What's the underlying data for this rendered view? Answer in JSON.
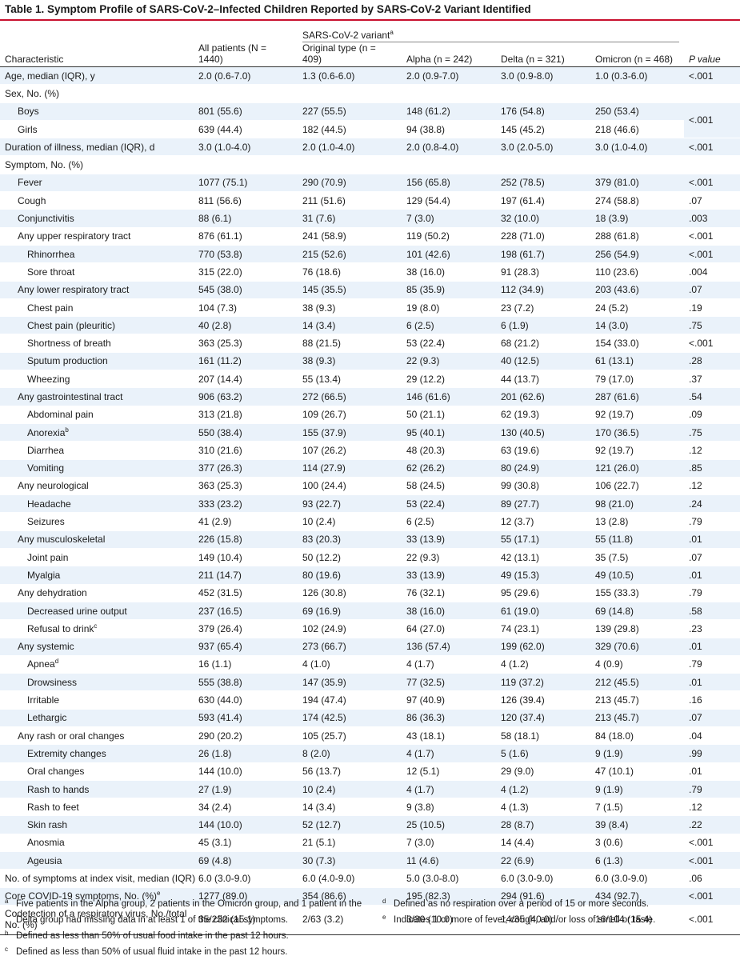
{
  "title": "Table 1. Symptom Profile of SARS-CoV-2–Infected Children Reported by SARS-CoV-2 Variant Identified",
  "header": {
    "characteristic": "Characteristic",
    "all": "All patients (N = 1440)",
    "group": "SARS-CoV-2 variant",
    "group_sup": "a",
    "original": "Original type (n = 409)",
    "alpha": "Alpha (n = 242)",
    "delta": "Delta (n = 321)",
    "omicron": "Omicron (n = 468)",
    "pvalue": "P value"
  },
  "rows": [
    {
      "label": "Age, median (IQR), y",
      "indent": 0,
      "all": "2.0 (0.6-7.0)",
      "orig": "1.3 (0.6-6.0)",
      "alpha": "2.0 (0.9-7.0)",
      "delta": "3.0 (0.9-8.0)",
      "omicron": "1.0 (0.3-6.0)",
      "p": "<.001"
    },
    {
      "label": "Sex, No. (%)",
      "indent": 0,
      "all": "",
      "orig": "",
      "alpha": "",
      "delta": "",
      "omicron": "",
      "p": ""
    },
    {
      "label": "Boys",
      "indent": 1,
      "all": "801 (55.6)",
      "orig": "227 (55.5)",
      "alpha": "148 (61.2)",
      "delta": "176 (54.8)",
      "omicron": "250 (53.4)",
      "p": "<.001",
      "rowspan": 2
    },
    {
      "label": "Girls",
      "indent": 1,
      "all": "639 (44.4)",
      "orig": "182 (44.5)",
      "alpha": "94 (38.8)",
      "delta": "145 (45.2)",
      "omicron": "218 (46.6)",
      "skip_p": true
    },
    {
      "label": "Duration of illness, median (IQR), d",
      "indent": 0,
      "all": "3.0 (1.0-4.0)",
      "orig": "2.0 (1.0-4.0)",
      "alpha": "2.0 (0.8-4.0)",
      "delta": "3.0 (2.0-5.0)",
      "omicron": "3.0 (1.0-4.0)",
      "p": "<.001"
    },
    {
      "label": "Symptom, No. (%)",
      "indent": 0,
      "all": "",
      "orig": "",
      "alpha": "",
      "delta": "",
      "omicron": "",
      "p": ""
    },
    {
      "label": "Fever",
      "indent": 1,
      "all": "1077 (75.1)",
      "orig": "290 (70.9)",
      "alpha": "156 (65.8)",
      "delta": "252 (78.5)",
      "omicron": "379 (81.0)",
      "p": "<.001"
    },
    {
      "label": "Cough",
      "indent": 1,
      "all": "811 (56.6)",
      "orig": "211 (51.6)",
      "alpha": "129 (54.4)",
      "delta": "197 (61.4)",
      "omicron": "274 (58.8)",
      "p": ".07"
    },
    {
      "label": "Conjunctivitis",
      "indent": 1,
      "all": "88 (6.1)",
      "orig": "31 (7.6)",
      "alpha": "7 (3.0)",
      "delta": "32 (10.0)",
      "omicron": "18 (3.9)",
      "p": ".003"
    },
    {
      "label": "Any upper respiratory tract",
      "indent": 1,
      "all": "876 (61.1)",
      "orig": "241 (58.9)",
      "alpha": "119 (50.2)",
      "delta": "228 (71.0)",
      "omicron": "288 (61.8)",
      "p": "<.001"
    },
    {
      "label": "Rhinorrhea",
      "indent": 2,
      "all": "770 (53.8)",
      "orig": "215 (52.6)",
      "alpha": "101 (42.6)",
      "delta": "198 (61.7)",
      "omicron": "256 (54.9)",
      "p": "<.001"
    },
    {
      "label": "Sore throat",
      "indent": 2,
      "all": "315 (22.0)",
      "orig": "76 (18.6)",
      "alpha": "38 (16.0)",
      "delta": "91 (28.3)",
      "omicron": "110 (23.6)",
      "p": ".004"
    },
    {
      "label": "Any lower respiratory tract",
      "indent": 1,
      "all": "545 (38.0)",
      "orig": "145 (35.5)",
      "alpha": "85 (35.9)",
      "delta": "112 (34.9)",
      "omicron": "203 (43.6)",
      "p": ".07"
    },
    {
      "label": "Chest pain",
      "indent": 2,
      "all": "104 (7.3)",
      "orig": "38 (9.3)",
      "alpha": "19 (8.0)",
      "delta": "23 (7.2)",
      "omicron": "24 (5.2)",
      "p": ".19"
    },
    {
      "label": "Chest pain (pleuritic)",
      "indent": 2,
      "all": "40 (2.8)",
      "orig": "14 (3.4)",
      "alpha": "6 (2.5)",
      "delta": "6 (1.9)",
      "omicron": "14 (3.0)",
      "p": ".75"
    },
    {
      "label": "Shortness of breath",
      "indent": 2,
      "all": "363 (25.3)",
      "orig": "88 (21.5)",
      "alpha": "53 (22.4)",
      "delta": "68 (21.2)",
      "omicron": "154 (33.0)",
      "p": "<.001"
    },
    {
      "label": "Sputum production",
      "indent": 2,
      "all": "161 (11.2)",
      "orig": "38 (9.3)",
      "alpha": "22 (9.3)",
      "delta": "40 (12.5)",
      "omicron": "61 (13.1)",
      "p": ".28"
    },
    {
      "label": "Wheezing",
      "indent": 2,
      "all": "207 (14.4)",
      "orig": "55 (13.4)",
      "alpha": "29 (12.2)",
      "delta": "44 (13.7)",
      "omicron": "79 (17.0)",
      "p": ".37"
    },
    {
      "label": "Any gastrointestinal tract",
      "indent": 1,
      "all": "906 (63.2)",
      "orig": "272 (66.5)",
      "alpha": "146 (61.6)",
      "delta": "201 (62.6)",
      "omicron": "287 (61.6)",
      "p": ".54"
    },
    {
      "label": "Abdominal pain",
      "indent": 2,
      "all": "313 (21.8)",
      "orig": "109 (26.7)",
      "alpha": "50 (21.1)",
      "delta": "62 (19.3)",
      "omicron": "92 (19.7)",
      "p": ".09"
    },
    {
      "label": "Anorexia",
      "sup": "b",
      "indent": 2,
      "all": "550 (38.4)",
      "orig": "155 (37.9)",
      "alpha": "95 (40.1)",
      "delta": "130 (40.5)",
      "omicron": "170 (36.5)",
      "p": ".75"
    },
    {
      "label": "Diarrhea",
      "indent": 2,
      "all": "310 (21.6)",
      "orig": "107 (26.2)",
      "alpha": "48 (20.3)",
      "delta": "63 (19.6)",
      "omicron": "92 (19.7)",
      "p": ".12"
    },
    {
      "label": "Vomiting",
      "indent": 2,
      "all": "377 (26.3)",
      "orig": "114 (27.9)",
      "alpha": "62 (26.2)",
      "delta": "80 (24.9)",
      "omicron": "121 (26.0)",
      "p": ".85"
    },
    {
      "label": "Any neurological",
      "indent": 1,
      "all": "363 (25.3)",
      "orig": "100 (24.4)",
      "alpha": "58 (24.5)",
      "delta": "99 (30.8)",
      "omicron": "106 (22.7)",
      "p": ".12"
    },
    {
      "label": "Headache",
      "indent": 2,
      "all": "333 (23.2)",
      "orig": "93 (22.7)",
      "alpha": "53 (22.4)",
      "delta": "89 (27.7)",
      "omicron": "98 (21.0)",
      "p": ".24"
    },
    {
      "label": "Seizures",
      "indent": 2,
      "all": "41 (2.9)",
      "orig": "10 (2.4)",
      "alpha": "6 (2.5)",
      "delta": "12 (3.7)",
      "omicron": "13 (2.8)",
      "p": ".79"
    },
    {
      "label": "Any musculoskeletal",
      "indent": 1,
      "all": "226 (15.8)",
      "orig": "83 (20.3)",
      "alpha": "33 (13.9)",
      "delta": "55 (17.1)",
      "omicron": "55 (11.8)",
      "p": ".01"
    },
    {
      "label": "Joint pain",
      "indent": 2,
      "all": "149 (10.4)",
      "orig": "50 (12.2)",
      "alpha": "22 (9.3)",
      "delta": "42 (13.1)",
      "omicron": "35 (7.5)",
      "p": ".07"
    },
    {
      "label": "Myalgia",
      "indent": 2,
      "all": "211 (14.7)",
      "orig": "80 (19.6)",
      "alpha": "33 (13.9)",
      "delta": "49 (15.3)",
      "omicron": "49 (10.5)",
      "p": ".01"
    },
    {
      "label": "Any dehydration",
      "indent": 1,
      "all": "452 (31.5)",
      "orig": "126 (30.8)",
      "alpha": "76 (32.1)",
      "delta": "95 (29.6)",
      "omicron": "155 (33.3)",
      "p": ".79"
    },
    {
      "label": "Decreased urine output",
      "indent": 2,
      "all": "237 (16.5)",
      "orig": "69 (16.9)",
      "alpha": "38 (16.0)",
      "delta": "61 (19.0)",
      "omicron": "69 (14.8)",
      "p": ".58"
    },
    {
      "label": "Refusal to drink",
      "sup": "c",
      "indent": 2,
      "all": "379 (26.4)",
      "orig": "102 (24.9)",
      "alpha": "64 (27.0)",
      "delta": "74 (23.1)",
      "omicron": "139 (29.8)",
      "p": ".23"
    },
    {
      "label": "Any systemic",
      "indent": 1,
      "all": "937 (65.4)",
      "orig": "273 (66.7)",
      "alpha": "136 (57.4)",
      "delta": "199 (62.0)",
      "omicron": "329 (70.6)",
      "p": ".01"
    },
    {
      "label": "Apnea",
      "sup": "d",
      "indent": 2,
      "all": "16 (1.1)",
      "orig": "4 (1.0)",
      "alpha": "4 (1.7)",
      "delta": "4 (1.2)",
      "omicron": "4 (0.9)",
      "p": ".79"
    },
    {
      "label": "Drowsiness",
      "indent": 2,
      "all": "555 (38.8)",
      "orig": "147 (35.9)",
      "alpha": "77 (32.5)",
      "delta": "119 (37.2)",
      "omicron": "212 (45.5)",
      "p": ".01"
    },
    {
      "label": "Irritable",
      "indent": 2,
      "all": "630 (44.0)",
      "orig": "194 (47.4)",
      "alpha": "97 (40.9)",
      "delta": "126 (39.4)",
      "omicron": "213 (45.7)",
      "p": ".16"
    },
    {
      "label": "Lethargic",
      "indent": 2,
      "all": "593 (41.4)",
      "orig": "174 (42.5)",
      "alpha": "86 (36.3)",
      "delta": "120 (37.4)",
      "omicron": "213 (45.7)",
      "p": ".07"
    },
    {
      "label": "Any rash or oral changes",
      "indent": 1,
      "all": "290 (20.2)",
      "orig": "105 (25.7)",
      "alpha": "43 (18.1)",
      "delta": "58 (18.1)",
      "omicron": "84 (18.0)",
      "p": ".04"
    },
    {
      "label": "Extremity changes",
      "indent": 2,
      "all": "26 (1.8)",
      "orig": "8 (2.0)",
      "alpha": "4 (1.7)",
      "delta": "5 (1.6)",
      "omicron": "9 (1.9)",
      "p": ".99"
    },
    {
      "label": "Oral changes",
      "indent": 2,
      "all": "144 (10.0)",
      "orig": "56 (13.7)",
      "alpha": "12 (5.1)",
      "delta": "29 (9.0)",
      "omicron": "47 (10.1)",
      "p": ".01"
    },
    {
      "label": "Rash to hands",
      "indent": 2,
      "all": "27 (1.9)",
      "orig": "10 (2.4)",
      "alpha": "4 (1.7)",
      "delta": "4 (1.2)",
      "omicron": "9 (1.9)",
      "p": ".79"
    },
    {
      "label": "Rash to feet",
      "indent": 2,
      "all": "34 (2.4)",
      "orig": "14 (3.4)",
      "alpha": "9 (3.8)",
      "delta": "4 (1.3)",
      "omicron": "7 (1.5)",
      "p": ".12"
    },
    {
      "label": "Skin rash",
      "indent": 2,
      "all": "144 (10.0)",
      "orig": "52 (12.7)",
      "alpha": "25 (10.5)",
      "delta": "28 (8.7)",
      "omicron": "39 (8.4)",
      "p": ".22"
    },
    {
      "label": "Anosmia",
      "indent": 2,
      "all": "45 (3.1)",
      "orig": "21 (5.1)",
      "alpha": "7 (3.0)",
      "delta": "14 (4.4)",
      "omicron": "3 (0.6)",
      "p": "<.001"
    },
    {
      "label": "Ageusia",
      "indent": 2,
      "all": "69 (4.8)",
      "orig": "30 (7.3)",
      "alpha": "11 (4.6)",
      "delta": "22 (6.9)",
      "omicron": "6 (1.3)",
      "p": "<.001"
    },
    {
      "label": "No. of symptoms at index visit, median (IQR)",
      "indent": 0,
      "all": "6.0 (3.0-9.0)",
      "orig": "6.0 (4.0-9.0)",
      "alpha": "5.0 (3.0-8.0)",
      "delta": "6.0 (3.0-9.0)",
      "omicron": "6.0 (3.0-9.0)",
      "p": ".06"
    },
    {
      "label": "Core COVID-19 symptoms, No. (%)",
      "sup": "e",
      "indent": 0,
      "all": "1277 (89.0)",
      "orig": "354 (86.6)",
      "alpha": "195 (82.3)",
      "delta": "294 (91.6)",
      "omicron": "434 (92.7)",
      "p": "<.001"
    },
    {
      "label": "Codetection of a respiratory virus, No./total No. (%)",
      "indent": 0,
      "wrap": true,
      "all": "35/232 (15.1)",
      "orig": "2/63 (3.2)",
      "alpha": "3/30 (10.0)",
      "delta": "14/35 (40.0)",
      "omicron": "16/104 (15.4)",
      "p": "<.001"
    }
  ],
  "footnotes_left": [
    {
      "mark": "a",
      "text": "Five patients in the Alpha group, 2 patients in the Omicron group, and 1 patient in the Delta group had missing data in at least 1 of the clinical symptoms."
    },
    {
      "mark": "b",
      "text": "Defined as less than 50% of usual food intake in the past 12 hours."
    },
    {
      "mark": "c",
      "text": "Defined as less than 50% of usual fluid intake in the past 12 hours."
    }
  ],
  "footnotes_right": [
    {
      "mark": "d",
      "text": "Defined as no respiration over a period of 15 or more seconds."
    },
    {
      "mark": "e",
      "text": "Indicates 1 or more of fever, cough, and/or loss of smell or taste."
    }
  ],
  "colors": {
    "title_rule": "#c8102e",
    "band": "#eaf2fa"
  }
}
